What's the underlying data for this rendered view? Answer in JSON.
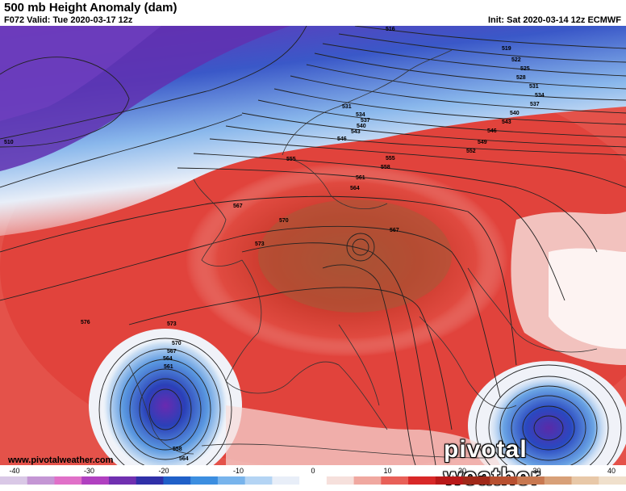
{
  "header": {
    "title": "500 mb Height Anomaly (dam)",
    "valid": "F072 Valid: Tue 2020-03-17 12z",
    "init": "Init: Sat 2020-03-14 12z ECMWF"
  },
  "footer": {
    "website": "www.pivotalweather.com",
    "brand": "pivotal weather"
  },
  "contour_labels": [
    "516",
    "519",
    "522",
    "525",
    "528",
    "531",
    "534",
    "537",
    "540",
    "543",
    "546",
    "549",
    "552",
    "555",
    "558",
    "561",
    "564",
    "567",
    "570",
    "573",
    "576",
    "510"
  ],
  "colorbar": {
    "ticks": [
      "-40",
      "-30",
      "-20",
      "-10",
      "0",
      "10",
      "20",
      "30",
      "40"
    ],
    "colors": [
      "#d9c8e6",
      "#c496d4",
      "#e070c8",
      "#b040c0",
      "#7030b0",
      "#3030a8",
      "#2060c8",
      "#3c8ee0",
      "#78b4ec",
      "#b4d4f4",
      "#e8eef8",
      "#ffffff",
      "#f6e0dc",
      "#f0a8a0",
      "#e86058",
      "#d82828",
      "#b81818",
      "#a02818",
      "#b85030",
      "#c87850",
      "#d8a078",
      "#e8c8a8",
      "#f0e0cc"
    ]
  },
  "colors": {
    "deep_negative": "#5a2aa8",
    "negative": "#2458c8",
    "neutral": "#ffffff",
    "positive": "#e03030",
    "strong_positive": "#b44a2a"
  }
}
